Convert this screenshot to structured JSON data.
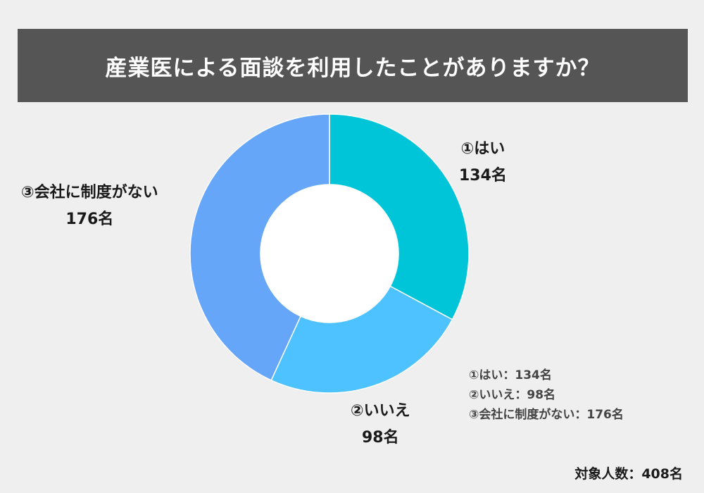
{
  "title": "産業医による面談を利用したことがありますか？",
  "chart_data": {
    "type": "pie",
    "donut": true,
    "categories": [
      "①はい",
      "②いいえ",
      "③会社に制度がない"
    ],
    "values": [
      134,
      98,
      176
    ],
    "colors": [
      "#00c5d9",
      "#4dc2ff",
      "#65a6f8"
    ],
    "value_labels": [
      "134名",
      "98名",
      "176名"
    ],
    "legend": [
      "①はい：134名",
      "②いいえ：98名",
      "③会社に制度がない：176名"
    ],
    "legend_position": "bottom-right"
  },
  "total_label": "対象人数：408名"
}
